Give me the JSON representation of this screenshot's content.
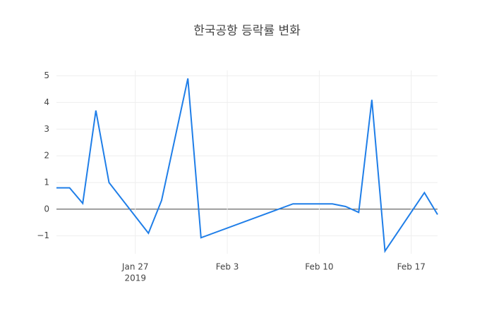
{
  "chart_data": {
    "type": "line",
    "title": "한국공항 등락률 변화",
    "x": [
      "2019-01-21",
      "2019-01-22",
      "2019-01-23",
      "2019-01-24",
      "2019-01-25",
      "2019-01-28",
      "2019-01-29",
      "2019-01-31",
      "2019-02-01",
      "2019-02-08",
      "2019-02-11",
      "2019-02-12",
      "2019-02-13",
      "2019-02-14",
      "2019-02-15",
      "2019-02-18",
      "2019-02-19"
    ],
    "series": [
      {
        "color": "#1f7ee8",
        "values": [
          0.8,
          0.8,
          0.22,
          3.7,
          1.0,
          -0.9,
          0.33,
          4.9,
          -1.07,
          0.2,
          0.2,
          0.1,
          -0.12,
          4.1,
          -1.57,
          0.62,
          -0.2
        ]
      }
    ],
    "xlim": [
      "2019-01-21",
      "2019-02-19"
    ],
    "xticks": [
      {
        "value": "2019-01-27",
        "label": "Jan 27"
      },
      {
        "value": "2019-02-03",
        "label": "Feb 3"
      },
      {
        "value": "2019-02-10",
        "label": "Feb 10"
      },
      {
        "value": "2019-02-17",
        "label": "Feb 17"
      }
    ],
    "x_year_label": "2019",
    "ylim": [
      -1.67,
      5.2
    ],
    "yticks": [
      {
        "value": -1,
        "label": "−1"
      },
      0,
      1,
      2,
      3,
      4,
      5
    ],
    "grid": true
  }
}
